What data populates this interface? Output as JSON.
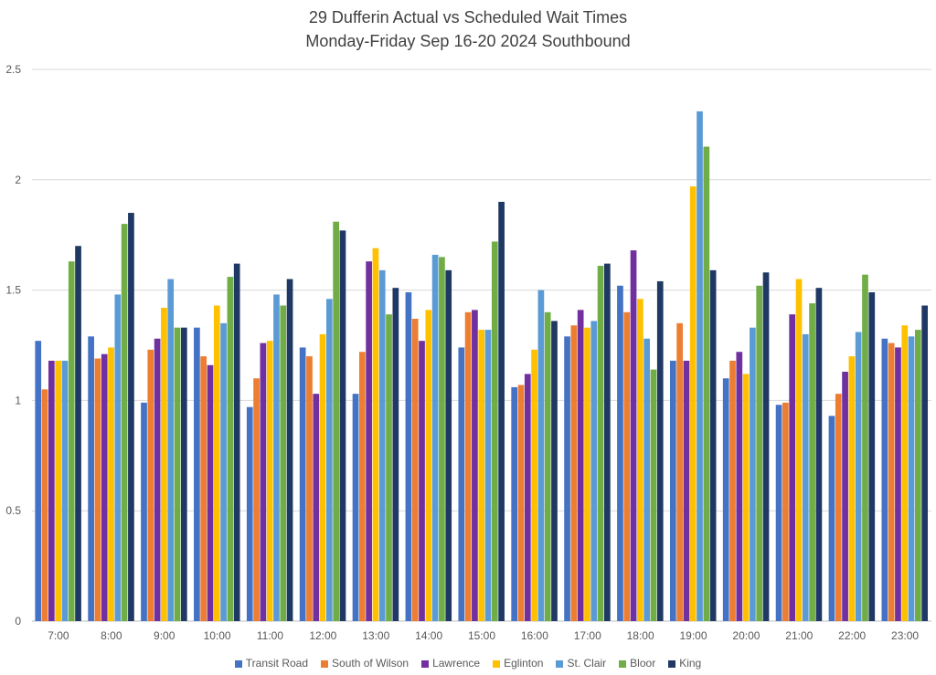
{
  "chart_data": {
    "type": "bar",
    "title": "29 Dufferin  Actual vs Scheduled Wait Times",
    "subtitle": "Monday-Friday Sep 16-20 2024 Southbound",
    "xlabel": "",
    "ylabel": "",
    "ylim": [
      0,
      2.5
    ],
    "yticks": [
      "0",
      "0.5",
      "1",
      "1.5",
      "2",
      "2.5"
    ],
    "grid": true,
    "legend_position": "bottom",
    "categories": [
      "7:00",
      "8:00",
      "9:00",
      "10:00",
      "11:00",
      "12:00",
      "13:00",
      "14:00",
      "15:00",
      "16:00",
      "17:00",
      "18:00",
      "19:00",
      "20:00",
      "21:00",
      "22:00",
      "23:00"
    ],
    "series": [
      {
        "name": "Transit Road",
        "color": "#4472C4",
        "values": [
          1.27,
          1.29,
          0.99,
          1.33,
          0.97,
          1.24,
          1.03,
          1.49,
          1.24,
          1.06,
          1.29,
          1.52,
          1.18,
          1.1,
          0.98,
          0.93,
          1.28
        ]
      },
      {
        "name": "South of Wilson",
        "color": "#ED7D31",
        "values": [
          1.05,
          1.19,
          1.23,
          1.2,
          1.1,
          1.2,
          1.22,
          1.37,
          1.4,
          1.07,
          1.34,
          1.4,
          1.35,
          1.18,
          0.99,
          1.03,
          1.26
        ]
      },
      {
        "name": "Lawrence",
        "color": "#7030A0",
        "values": [
          1.18,
          1.21,
          1.28,
          1.16,
          1.26,
          1.03,
          1.63,
          1.27,
          1.41,
          1.12,
          1.41,
          1.68,
          1.18,
          1.22,
          1.39,
          1.13,
          1.24
        ]
      },
      {
        "name": "Eglinton",
        "color": "#FFC000",
        "values": [
          1.18,
          1.24,
          1.42,
          1.43,
          1.27,
          1.3,
          1.69,
          1.41,
          1.32,
          1.23,
          1.33,
          1.46,
          1.97,
          1.12,
          1.55,
          1.2,
          1.34
        ]
      },
      {
        "name": "St. Clair",
        "color": "#5B9BD5",
        "values": [
          1.18,
          1.48,
          1.55,
          1.35,
          1.48,
          1.46,
          1.59,
          1.66,
          1.32,
          1.5,
          1.36,
          1.28,
          2.31,
          1.33,
          1.3,
          1.31,
          1.29
        ]
      },
      {
        "name": "Bloor",
        "color": "#70AD47",
        "values": [
          1.63,
          1.8,
          1.33,
          1.56,
          1.43,
          1.81,
          1.39,
          1.65,
          1.72,
          1.4,
          1.61,
          1.14,
          2.15,
          1.52,
          1.44,
          1.57,
          1.32
        ]
      },
      {
        "name": "King",
        "color": "#1F3864",
        "values": [
          1.7,
          1.85,
          1.33,
          1.62,
          1.55,
          1.77,
          1.51,
          1.59,
          1.9,
          1.36,
          1.62,
          1.54,
          1.59,
          1.58,
          1.51,
          1.49,
          1.43
        ]
      }
    ]
  }
}
